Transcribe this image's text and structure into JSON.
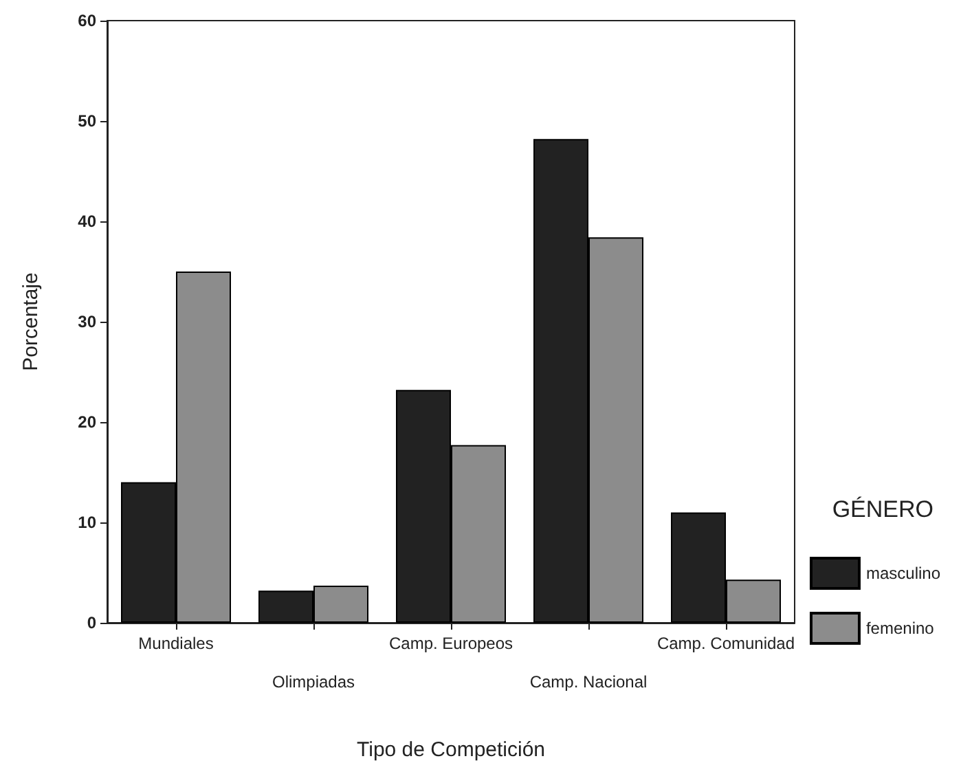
{
  "chart_data": {
    "type": "bar",
    "xlabel": "Tipo de Competición",
    "ylabel": "Porcentaje",
    "legend_title": "GÉNERO",
    "categories": [
      "Mundiales",
      "Olimpiadas",
      "Camp. Europeos",
      "Camp. Nacional",
      "Camp. Comunidad"
    ],
    "series": [
      {
        "name": "masculino",
        "color": "#222222",
        "values": [
          14.0,
          3.2,
          23.2,
          48.2,
          11.0
        ]
      },
      {
        "name": "femenino",
        "color": "#8c8c8c",
        "values": [
          35.0,
          3.7,
          17.7,
          38.4,
          4.3
        ]
      }
    ],
    "ylim": [
      0,
      60
    ],
    "yticks": [
      0,
      10,
      20,
      30,
      40,
      50,
      60
    ],
    "grid": false,
    "legend": "right"
  }
}
